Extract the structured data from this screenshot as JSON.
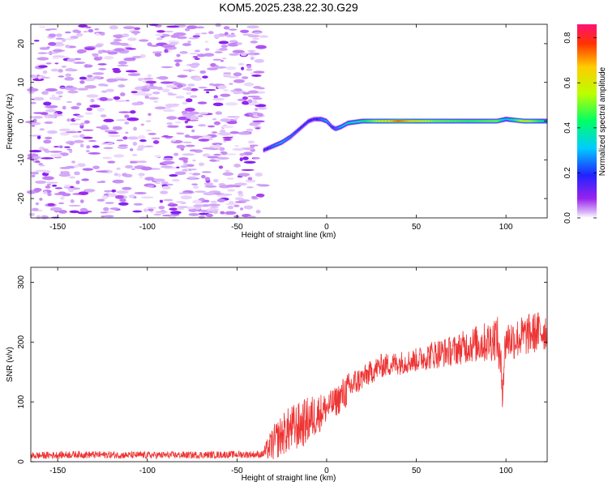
{
  "title": "KOM5.2025.238.22.30.G29",
  "chart_data": [
    {
      "type": "heatmap",
      "xlabel": "Height of straight line (km)",
      "ylabel": "Frequency (Hz)",
      "xlim": [
        -165,
        123
      ],
      "ylim": [
        -25,
        25
      ],
      "xticks": [
        -150,
        -100,
        -50,
        0,
        50,
        100
      ],
      "yticks": [
        -20,
        -10,
        0,
        10,
        20
      ],
      "colorbar": {
        "label": "Normalized spectral amplitude",
        "range": [
          0,
          0.86
        ],
        "ticks": [
          0.0,
          0.2,
          0.4,
          0.6,
          0.8
        ],
        "colormap": "rainbow (violet to red)"
      },
      "noise_region_x": [
        -165,
        -35
      ],
      "signal_track": {
        "x": [
          -35,
          -30,
          -25,
          -20,
          -15,
          -10,
          -7,
          -3,
          0,
          3,
          5,
          8,
          12,
          20,
          40,
          60,
          80,
          95,
          100,
          110,
          123
        ],
        "frequency": [
          -7.5,
          -6.5,
          -5.5,
          -4.0,
          -2.0,
          0.0,
          0.5,
          0.5,
          0.0,
          -1.5,
          -2.0,
          -1.5,
          -0.5,
          0.0,
          0.0,
          0.0,
          0.0,
          0.0,
          0.5,
          0.0,
          0.0
        ],
        "amplitude": [
          0.15,
          0.25,
          0.3,
          0.25,
          0.2,
          0.2,
          0.15,
          0.25,
          0.3,
          0.2,
          0.25,
          0.3,
          0.35,
          0.4,
          0.75,
          0.5,
          0.45,
          0.5,
          0.3,
          0.6,
          0.35
        ]
      }
    },
    {
      "type": "line",
      "xlabel": "Height of straight line (km)",
      "ylabel": "SNR (v/v)",
      "xlim": [
        -165,
        123
      ],
      "ylim": [
        0,
        325
      ],
      "xticks": [
        -150,
        -100,
        -50,
        0,
        50,
        100
      ],
      "yticks": [
        0,
        100,
        200,
        300
      ],
      "series": [
        {
          "color": "#ee3333",
          "x": [
            -165,
            -140,
            -110,
            -80,
            -50,
            -36,
            -30,
            -25,
            -20,
            -15,
            -10,
            -5,
            0,
            5,
            10,
            15,
            20,
            25,
            30,
            40,
            50,
            60,
            70,
            80,
            90,
            95,
            98,
            100,
            105,
            110,
            115,
            123
          ],
          "mean": [
            10,
            12,
            11,
            11,
            12,
            12,
            30,
            45,
            55,
            60,
            70,
            80,
            90,
            100,
            115,
            130,
            140,
            150,
            160,
            165,
            170,
            180,
            185,
            195,
            200,
            210,
            130,
            205,
            205,
            210,
            215,
            220
          ],
          "spread": [
            6,
            6,
            6,
            6,
            6,
            6,
            30,
            35,
            40,
            40,
            40,
            35,
            25,
            25,
            30,
            25,
            20,
            20,
            20,
            20,
            20,
            25,
            25,
            30,
            35,
            40,
            40,
            35,
            35,
            35,
            35,
            35
          ]
        }
      ]
    }
  ]
}
